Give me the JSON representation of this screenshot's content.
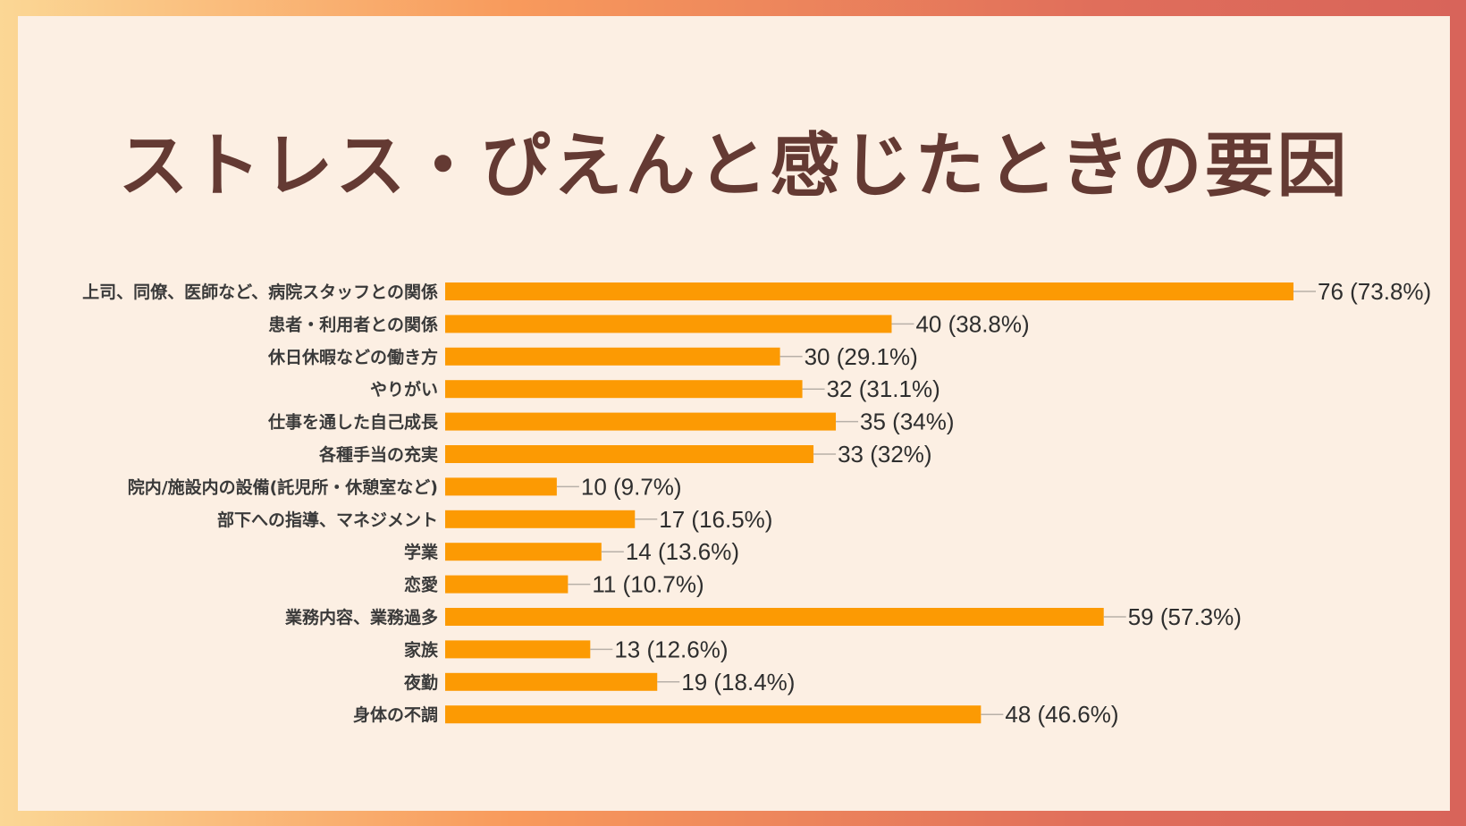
{
  "title": "ストレス・ぴえんと感じたときの要因",
  "colors": {
    "bar": "#fc9a03",
    "title": "#643a33",
    "background": "#fcefe3"
  },
  "chart_data": {
    "type": "bar",
    "orientation": "horizontal",
    "title": "ストレス・ぴえんと感じたときの要因",
    "xlabel": "",
    "ylabel": "",
    "xlim": [
      0,
      76
    ],
    "categories": [
      "上司、同僚、医師など、病院スタッフとの関係",
      "患者・利用者との関係",
      "休日休暇などの働き方",
      "やりがい",
      "仕事を通した自己成長",
      "各種手当の充実",
      "院内/施設内の設備(託児所・休憩室など)",
      "部下への指導、マネジメント",
      "学業",
      "恋愛",
      "業務内容、業務過多",
      "家族",
      "夜勤",
      "身体の不調"
    ],
    "values": [
      76,
      40,
      30,
      32,
      35,
      33,
      10,
      17,
      14,
      11,
      59,
      13,
      19,
      48
    ],
    "data_labels": [
      "76 (73.8%)",
      "40 (38.8%)",
      "30 (29.1%)",
      "32 (31.1%)",
      "35 (34%)",
      "33 (32%)",
      "10 (9.7%)",
      "17 (16.5%)",
      "14 (13.6%)",
      "11 (10.7%)",
      "59 (57.3%)",
      "13 (12.6%)",
      "19 (18.4%)",
      "48 (46.6%)"
    ]
  }
}
